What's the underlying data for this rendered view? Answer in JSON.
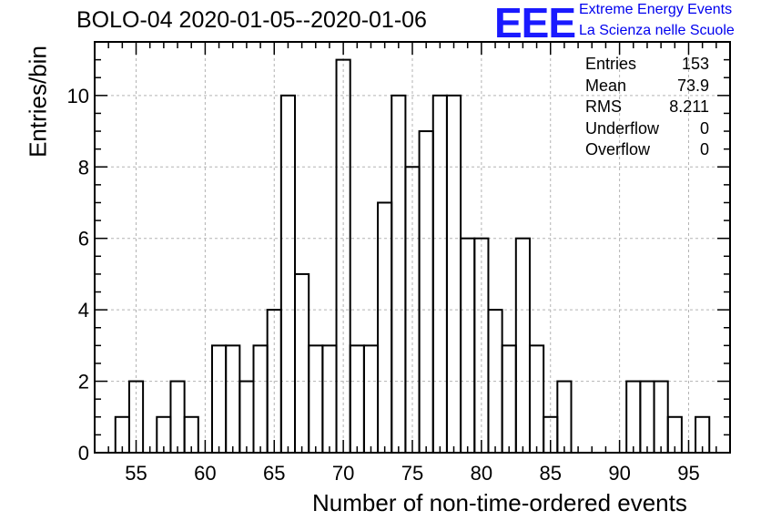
{
  "title": "BOLO-04 2020-01-05--2020-01-06",
  "logo": {
    "mark": "EEE",
    "line1": "Extreme Energy Events",
    "line2": "La Scienza nelle Scuole"
  },
  "stats": [
    {
      "label": "Entries",
      "value": "153"
    },
    {
      "label": "Mean",
      "value": "73.9"
    },
    {
      "label": "RMS",
      "value": "8.211"
    },
    {
      "label": "Underflow",
      "value": "0"
    },
    {
      "label": "Overflow",
      "value": "0"
    }
  ],
  "chart_data": {
    "type": "bar",
    "title": "BOLO-04 2020-01-05--2020-01-06",
    "xlabel": "Number of non-time-ordered events",
    "ylabel": "Entries/bin",
    "xlim": [
      52,
      98
    ],
    "ylim": [
      0,
      11.5
    ],
    "bin_width": 1,
    "grid": true,
    "x_ticks": [
      55,
      60,
      65,
      70,
      75,
      80,
      85,
      90,
      95
    ],
    "y_ticks": [
      0,
      2,
      4,
      6,
      8,
      10
    ],
    "bins": [
      {
        "x": 54,
        "value": 1
      },
      {
        "x": 55,
        "value": 2
      },
      {
        "x": 57,
        "value": 1
      },
      {
        "x": 58,
        "value": 2
      },
      {
        "x": 59,
        "value": 1
      },
      {
        "x": 61,
        "value": 3
      },
      {
        "x": 62,
        "value": 3
      },
      {
        "x": 63,
        "value": 2
      },
      {
        "x": 64,
        "value": 3
      },
      {
        "x": 65,
        "value": 4
      },
      {
        "x": 66,
        "value": 10
      },
      {
        "x": 67,
        "value": 5
      },
      {
        "x": 68,
        "value": 3
      },
      {
        "x": 69,
        "value": 3
      },
      {
        "x": 70,
        "value": 11
      },
      {
        "x": 71,
        "value": 3
      },
      {
        "x": 72,
        "value": 3
      },
      {
        "x": 73,
        "value": 7
      },
      {
        "x": 74,
        "value": 10
      },
      {
        "x": 75,
        "value": 8
      },
      {
        "x": 76,
        "value": 9
      },
      {
        "x": 77,
        "value": 10
      },
      {
        "x": 78,
        "value": 10
      },
      {
        "x": 79,
        "value": 6
      },
      {
        "x": 80,
        "value": 6
      },
      {
        "x": 81,
        "value": 4
      },
      {
        "x": 82,
        "value": 3
      },
      {
        "x": 83,
        "value": 6
      },
      {
        "x": 84,
        "value": 3
      },
      {
        "x": 85,
        "value": 1
      },
      {
        "x": 86,
        "value": 2
      },
      {
        "x": 91,
        "value": 2
      },
      {
        "x": 92,
        "value": 2
      },
      {
        "x": 93,
        "value": 2
      },
      {
        "x": 94,
        "value": 1
      },
      {
        "x": 96,
        "value": 1
      }
    ],
    "colors": {
      "line": "#000000",
      "grid": "#b3b3b3"
    }
  }
}
